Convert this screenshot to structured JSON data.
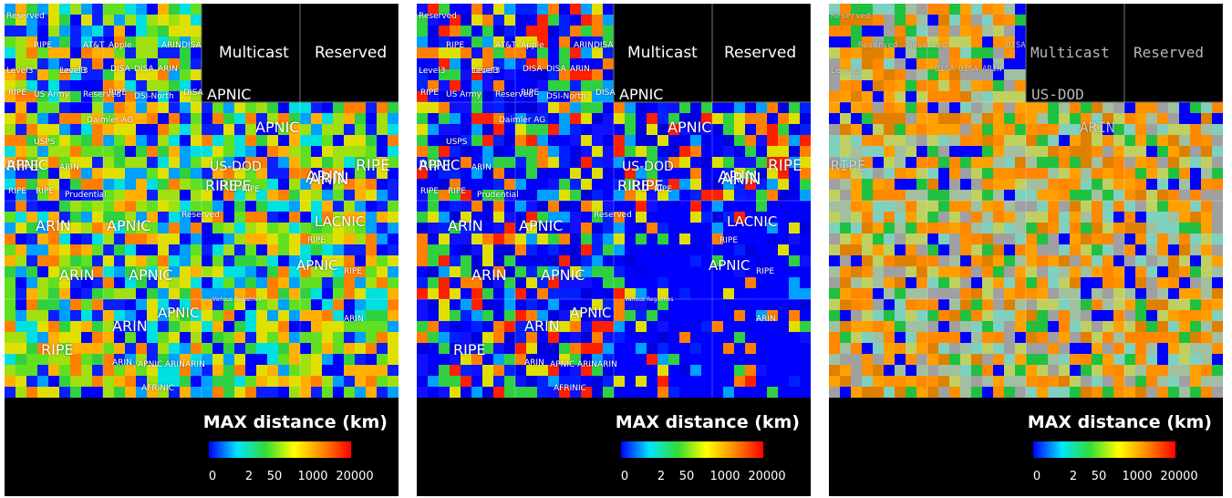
{
  "panels": [
    {
      "style": "sans",
      "legend": {
        "title": "MAX distance (km)",
        "ticks": [
          "0",
          "2",
          "50",
          "1000",
          "20000"
        ]
      },
      "top_labels": {
        "multicast": "Multicast",
        "reserved": "Reserved"
      },
      "labels_big": [
        "APNIC",
        "APNIC",
        "RIPE",
        "APNIC",
        "ARIN",
        "RIPE",
        "ARIN",
        "APNIC",
        "LACNIC",
        "ARIN",
        "APNIC",
        "APNIC",
        "ARIN",
        "APNIC",
        "RIPE",
        "RIPE",
        "US-DOD",
        "RIPE",
        "ARIN"
      ],
      "labels_small": [
        "Reserved",
        "Level3",
        "DISA",
        "DISA",
        "ARIN",
        "DISA",
        "RIPE",
        "AT&T",
        "Apple",
        "ARIN",
        "Level3",
        "RIPE",
        "US Army",
        "Reserved",
        "RIPE",
        "DISA",
        "USPS",
        "ARIN",
        "RIPE",
        "RIPE",
        "Prudential",
        "Reserved",
        "Various Registries",
        "RIPE",
        "ARIN",
        "ARIN",
        "APNIC",
        "ARIN",
        "ARIN",
        "AFRINIC",
        "RIPE",
        "RIPE",
        "DSI-North",
        "Daimler AG",
        "Level3"
      ]
    },
    {
      "style": "sans",
      "legend": {
        "title": "MAX distance (km)",
        "ticks": [
          "0",
          "2",
          "50",
          "1000",
          "20000"
        ]
      },
      "top_labels": {
        "multicast": "Multicast",
        "reserved": "Reserved"
      },
      "labels_big": [
        "APNIC",
        "APNIC",
        "RIPE",
        "APNIC",
        "ARIN",
        "RIPE",
        "ARIN",
        "APNIC",
        "LACNIC",
        "ARIN",
        "APNIC",
        "APNIC",
        "ARIN",
        "APNIC",
        "RIPE",
        "RIPE",
        "US-DOD",
        "RIPE",
        "ARIN"
      ],
      "labels_small": [
        "Reserved",
        "Level3",
        "DISA",
        "DISA",
        "ARIN",
        "DISA",
        "RIPE",
        "AT&T",
        "Apple",
        "ARIN",
        "Level3",
        "RIPE",
        "US Army",
        "Reserved",
        "RIPE",
        "DISA",
        "USPS",
        "ARIN",
        "RIPE",
        "RIPE",
        "Prudential",
        "Reserved",
        "Various Registries",
        "RIPE",
        "ARIN",
        "ARIN",
        "APNIC",
        "ARIN",
        "ARIN",
        "AFRINIC",
        "RIPE",
        "RIPE",
        "DSI-North",
        "Daimler AG",
        "Level3"
      ]
    },
    {
      "style": "mono",
      "legend": {
        "title": "MAX distance (km)",
        "ticks": [
          "0",
          "2",
          "50",
          "1000",
          "20000"
        ]
      },
      "top_labels": {
        "multicast": "Multicast",
        "reserved": "Reserved"
      },
      "labels_big": [
        "US-DOD",
        "ARIN",
        "RIPE"
      ],
      "labels_small": [
        "Reserved",
        "Level3",
        "DISA",
        "DISA",
        "ARIN",
        "DISA",
        "Reserved",
        "Reserved"
      ]
    }
  ],
  "colorbar_colors": [
    "#0000ff",
    "#00e5ff",
    "#33dd33",
    "#ffff00",
    "#ff8800",
    "#ff0000"
  ]
}
